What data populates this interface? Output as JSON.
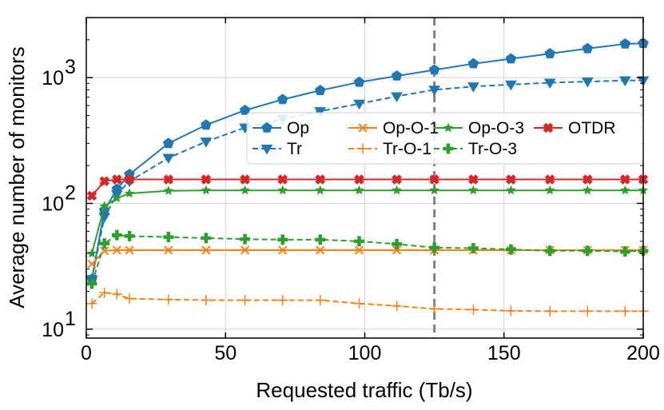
{
  "chart_data": {
    "type": "line",
    "title": "",
    "xlabel": "Requested traffic (Tb/s)",
    "ylabel": "Average number of monitors",
    "xlim": [
      0,
      200
    ],
    "ylim": [
      8.5,
      3000
    ],
    "yscale": "log",
    "grid": true,
    "legend_position": "top-right",
    "x_ticks": [
      {
        "value": 0,
        "label": "0"
      },
      {
        "value": 50,
        "label": "50"
      },
      {
        "value": 100,
        "label": "100"
      },
      {
        "value": 150,
        "label": "150"
      },
      {
        "value": 200,
        "label": "200"
      }
    ],
    "y_ticks": [
      {
        "value": 10,
        "base": "10",
        "exp": "1"
      },
      {
        "value": 100,
        "base": "10",
        "exp": "2"
      },
      {
        "value": 1000,
        "base": "10",
        "exp": "3"
      }
    ],
    "reference_line": {
      "x": 125,
      "style": "dashed",
      "color": "#808080"
    },
    "x": [
      2,
      6.5,
      11,
      15.5,
      29.5,
      43,
      57,
      70.5,
      84,
      98,
      111.5,
      125,
      139,
      152.5,
      166.5,
      180,
      193.5,
      200
    ],
    "series": [
      {
        "name": "Op",
        "color": "#1f77b4",
        "dash": "solid",
        "marker": "pentagon",
        "values": [
          25,
          88,
          130,
          170,
          300,
          420,
          550,
          670,
          790,
          920,
          1030,
          1150,
          1290,
          1410,
          1550,
          1700,
          1850,
          1870
        ]
      },
      {
        "name": "Tr",
        "color": "#1f77b4",
        "dash": "dashed",
        "marker": "triangle-down",
        "values": [
          25,
          78,
          118,
          150,
          230,
          310,
          400,
          470,
          540,
          620,
          710,
          800,
          850,
          880,
          910,
          930,
          950,
          950
        ]
      },
      {
        "name": "Op-O-1",
        "color": "#ff7f0e",
        "dash": "solid",
        "marker": "x",
        "values": [
          33,
          42,
          42.5,
          42.5,
          42.5,
          42.5,
          42.5,
          42.5,
          42.5,
          42.5,
          42.5,
          42.5,
          42.5,
          42.5,
          42.5,
          42.5,
          42.5,
          42.5
        ]
      },
      {
        "name": "Tr-O-1",
        "color": "#ff7f0e",
        "dash": "dashed",
        "marker": "plus",
        "values": [
          16,
          19.5,
          19,
          17.5,
          17.2,
          17,
          17,
          17,
          17,
          16,
          15.3,
          14.5,
          14.3,
          14,
          13.9,
          13.9,
          13.9,
          13.9
        ]
      },
      {
        "name": "Op-O-3",
        "color": "#2ca02c",
        "dash": "solid",
        "marker": "star",
        "values": [
          40,
          95,
          110,
          120,
          126,
          127,
          127,
          127,
          127,
          127,
          127,
          127,
          127,
          127,
          127,
          127,
          127,
          127
        ]
      },
      {
        "name": "Tr-O-3",
        "color": "#2ca02c",
        "dash": "dashed",
        "marker": "plus-thick",
        "values": [
          23,
          48,
          56,
          55,
          54,
          53,
          52,
          51.5,
          51.5,
          50,
          47.5,
          44.5,
          44,
          43,
          42,
          42,
          41.5,
          42
        ]
      },
      {
        "name": "OTDR",
        "color": "#d62728",
        "dash": "solid",
        "marker": "x-thick",
        "values": [
          115,
          150,
          155,
          155,
          155,
          155,
          155,
          155,
          155,
          155,
          155,
          155,
          155,
          155,
          155,
          155,
          155,
          155
        ]
      }
    ],
    "legend_layout": [
      [
        "Op",
        "Op-O-1",
        "Op-O-3",
        "OTDR"
      ],
      [
        "Tr",
        "Tr-O-1",
        "Tr-O-3"
      ]
    ]
  }
}
